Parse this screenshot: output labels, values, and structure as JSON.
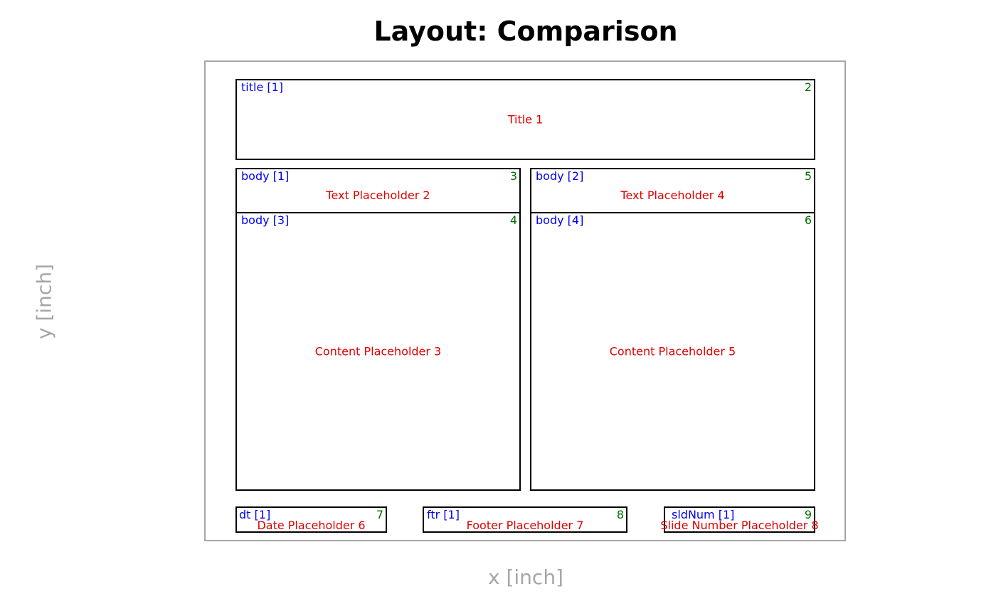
{
  "header": {
    "title": "Layout: Comparison"
  },
  "axes": {
    "xlabel": "x [inch]",
    "ylabel": "y [inch]"
  },
  "placeholders": [
    {
      "type": "title [1]",
      "index": "2",
      "name": "Title 1"
    },
    {
      "type": "body [1]",
      "index": "3",
      "name": "Text Placeholder 2"
    },
    {
      "type": "body [2]",
      "index": "5",
      "name": "Text Placeholder 4"
    },
    {
      "type": "body [3]",
      "index": "4",
      "name": "Content Placeholder 3"
    },
    {
      "type": "body [4]",
      "index": "6",
      "name": "Content Placeholder 5"
    },
    {
      "type": "dt [1]",
      "index": "7",
      "name": "Date Placeholder 6"
    },
    {
      "type": "ftr [1]",
      "index": "8",
      "name": "Footer Placeholder 7"
    },
    {
      "type": "sldNum [1]",
      "index": "9",
      "name": "Slide Number Placeholder 8"
    }
  ],
  "colors": {
    "type_label": "#0000ee",
    "index_label": "#007000",
    "name_label": "#e00000",
    "slide_border": "#a6a6a6",
    "axis_label": "#a6a6a6"
  }
}
